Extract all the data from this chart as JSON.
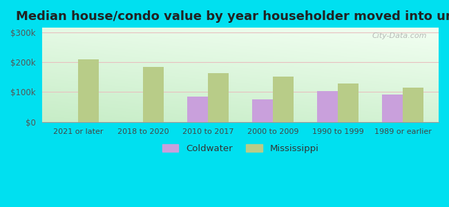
{
  "title": "Median house/condo value by year householder moved into unit",
  "categories": [
    "2021 or later",
    "2018 to 2020",
    "2010 to 2017",
    "2000 to 2009",
    "1990 to 1999",
    "1989 or earlier"
  ],
  "coldwater_values": [
    0,
    0,
    85000,
    75000,
    103000,
    92000
  ],
  "mississippi_values": [
    210000,
    183000,
    163000,
    152000,
    128000,
    115000
  ],
  "coldwater_color": "#c9a0dc",
  "mississippi_color": "#b8cc88",
  "background_outer": "#00e0f0",
  "yticks": [
    0,
    100000,
    200000,
    300000
  ],
  "ylim": [
    0,
    315000
  ],
  "title_fontsize": 13,
  "legend_labels": [
    "Coldwater",
    "Mississippi"
  ],
  "watermark": "City-Data.com",
  "bar_width": 0.32
}
